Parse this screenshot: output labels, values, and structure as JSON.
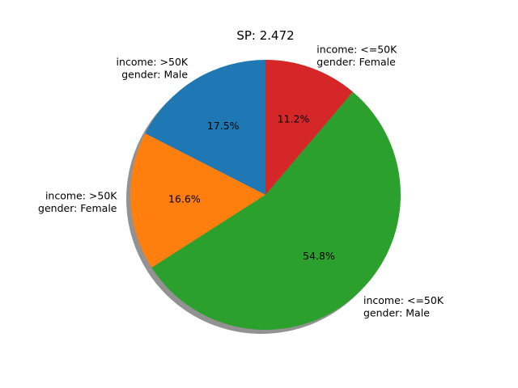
{
  "chart_data": {
    "type": "pie",
    "title": "SP: 2.472",
    "start_angle_deg": 90,
    "direction": "counterclockwise",
    "shadow": true,
    "slices": [
      {
        "label_lines": [
          "income: >50K",
          "gender: Male"
        ],
        "value": 17.5,
        "pct_label": "17.5%",
        "color": "#1f77b4"
      },
      {
        "label_lines": [
          "income: >50K",
          "gender: Female"
        ],
        "value": 16.6,
        "pct_label": "16.6%",
        "color": "#ff7f0e"
      },
      {
        "label_lines": [
          "income: <=50K",
          "gender: Male"
        ],
        "value": 54.8,
        "pct_label": "54.8%",
        "color": "#2ca02c"
      },
      {
        "label_lines": [
          "income: <=50K",
          "gender: Female"
        ],
        "value": 11.2,
        "pct_label": "11.2%",
        "color": "#d62728"
      }
    ]
  }
}
